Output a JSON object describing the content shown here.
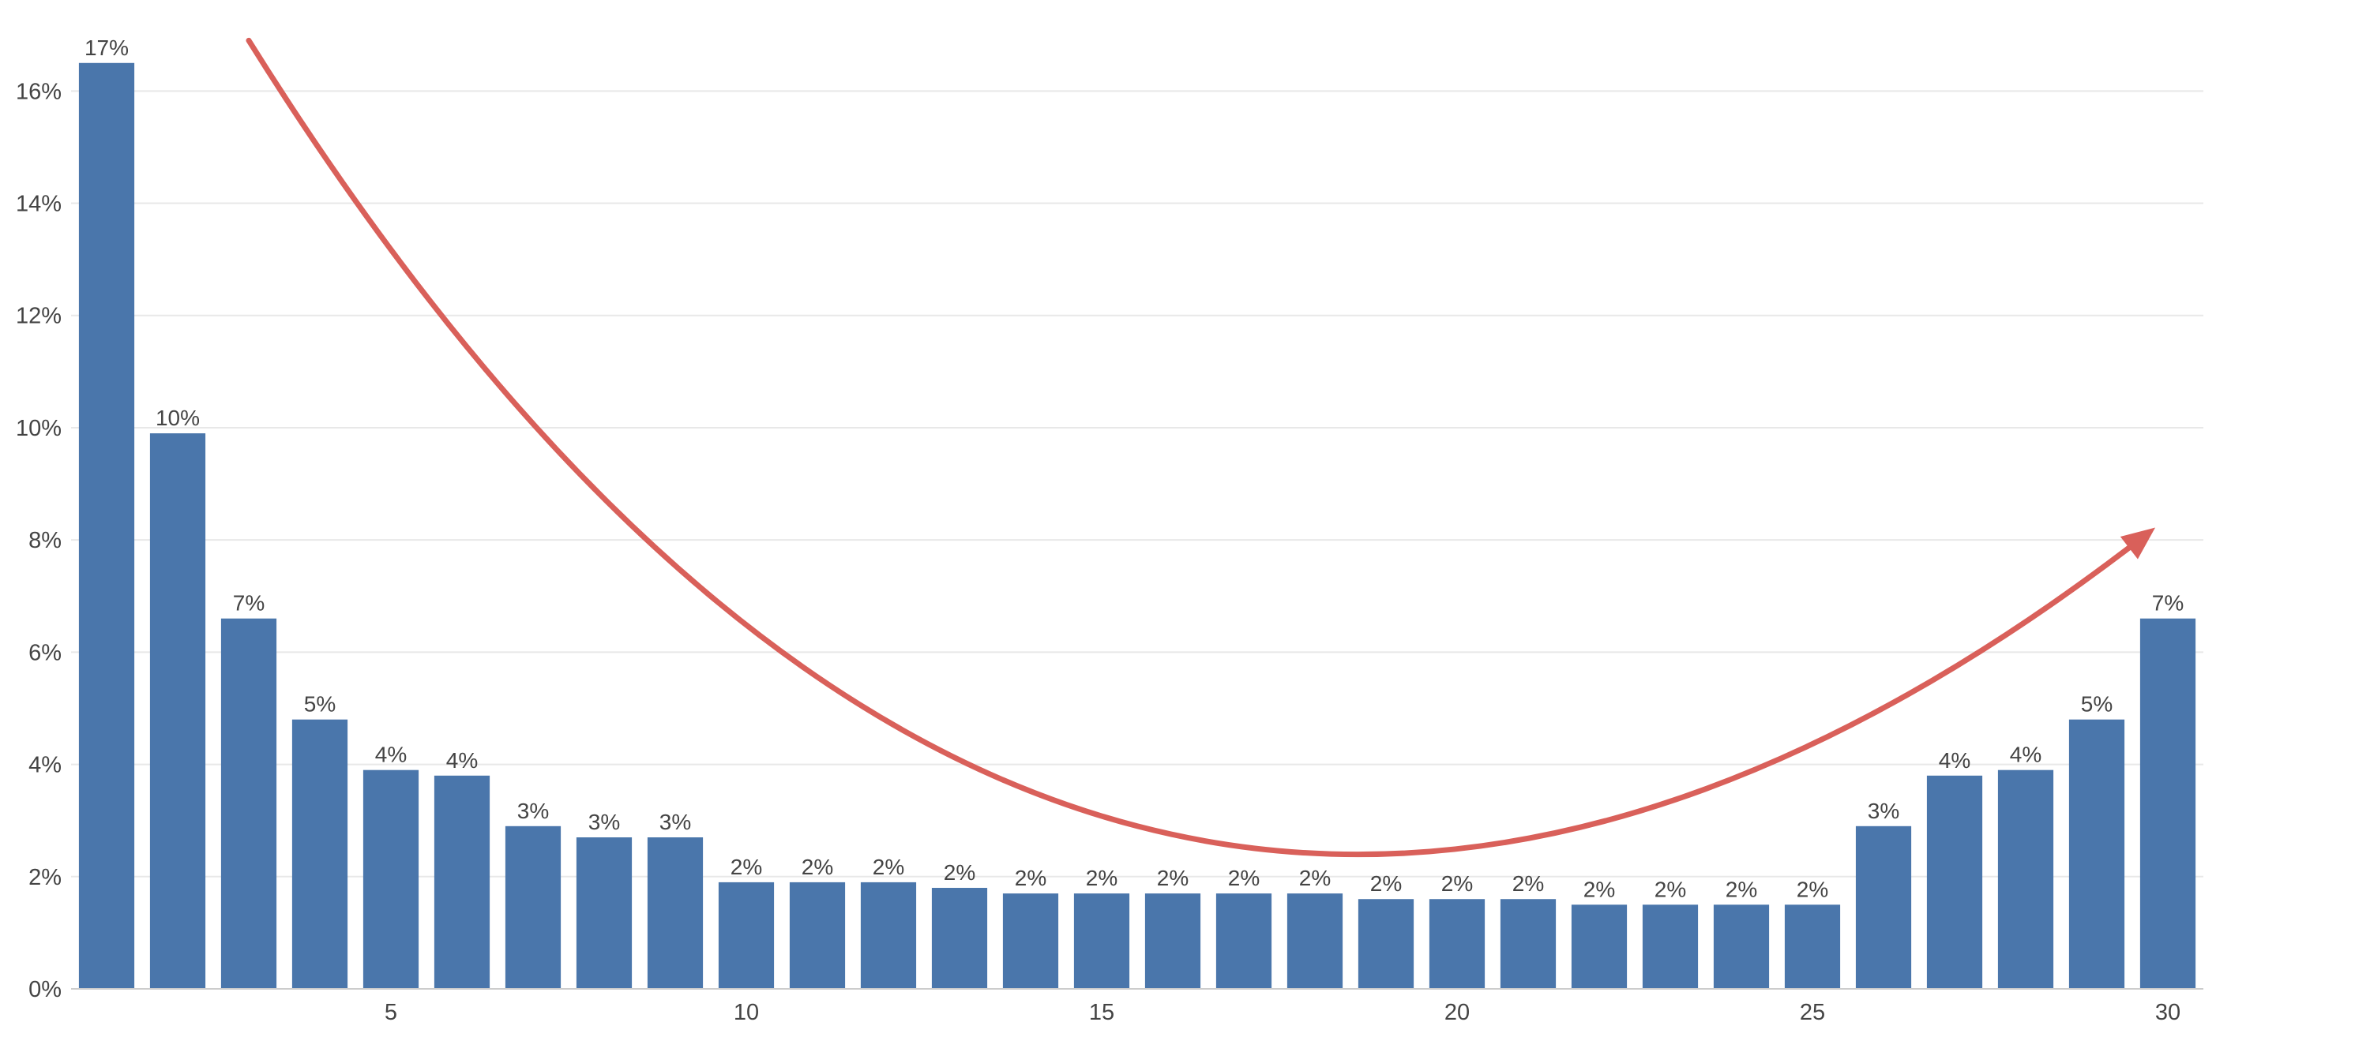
{
  "chart_data": {
    "type": "bar",
    "title": "",
    "xlabel": "",
    "ylabel": "",
    "categories": [
      1,
      2,
      3,
      4,
      5,
      6,
      7,
      8,
      9,
      10,
      11,
      12,
      13,
      14,
      15,
      16,
      17,
      18,
      19,
      20,
      21,
      22,
      23,
      24,
      25,
      26,
      27,
      28,
      29,
      30
    ],
    "values": [
      16.5,
      9.9,
      6.6,
      4.8,
      3.9,
      3.8,
      2.9,
      2.7,
      2.7,
      1.9,
      1.9,
      1.9,
      1.8,
      1.7,
      1.7,
      1.7,
      1.7,
      1.7,
      1.6,
      1.6,
      1.6,
      1.5,
      1.5,
      1.5,
      1.5,
      2.9,
      3.8,
      3.9,
      4.8,
      6.6
    ],
    "data_labels": [
      "17%",
      "10%",
      "7%",
      "5%",
      "4%",
      "4%",
      "3%",
      "3%",
      "3%",
      "2%",
      "2%",
      "2%",
      "2%",
      "2%",
      "2%",
      "2%",
      "2%",
      "2%",
      "2%",
      "2%",
      "2%",
      "2%",
      "2%",
      "2%",
      "2%",
      "3%",
      "4%",
      "4%",
      "5%",
      "7%"
    ],
    "x_tick_labels": [
      {
        "value": 5,
        "label": "5"
      },
      {
        "value": 10,
        "label": "10"
      },
      {
        "value": 15,
        "label": "15"
      },
      {
        "value": 20,
        "label": "20"
      },
      {
        "value": 25,
        "label": "25"
      },
      {
        "value": 30,
        "label": "30"
      }
    ],
    "y_tick_labels": [
      "0%",
      "2%",
      "4%",
      "6%",
      "8%",
      "10%",
      "12%",
      "14%",
      "16%"
    ],
    "ylim": [
      0,
      17.2
    ],
    "grid": true,
    "legend": "none",
    "colors": {
      "bar": "#4a76ab",
      "arrow": "#d9605a",
      "grid": "#e8e8e8",
      "axis": "#cccccc",
      "text": "#444444"
    },
    "annotation": {
      "shape": "curved-arrow",
      "points": [
        [
          3.0,
          16.9
        ],
        [
          15.5,
          2.9
        ],
        [
          29.7,
          8.1
        ]
      ],
      "direction": "left-to-right"
    }
  }
}
